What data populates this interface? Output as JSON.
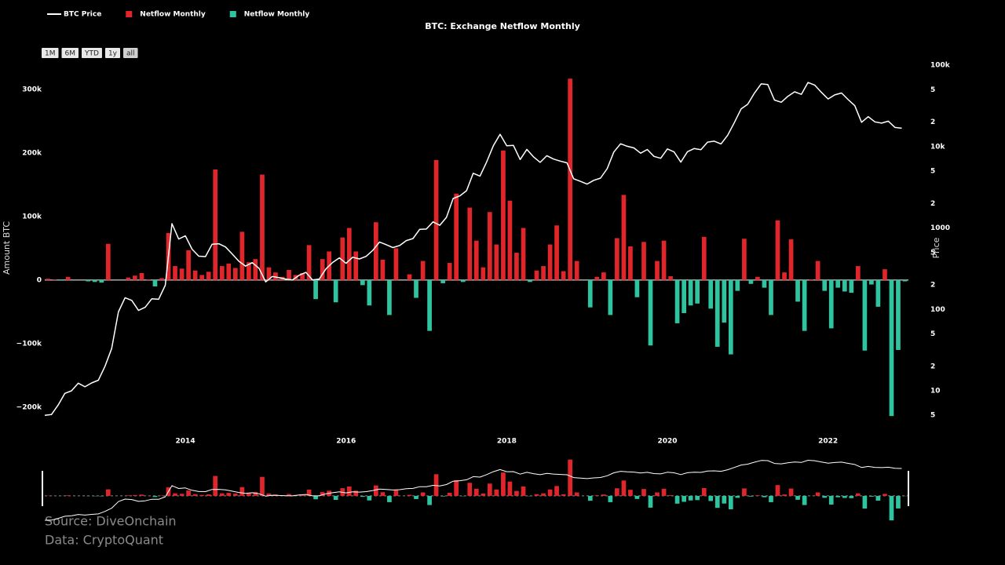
{
  "chart_data": {
    "type": "combo",
    "title": "BTC: Exchange Netflow Monthly",
    "ylabel": "Amount BTC",
    "y2label": "Price",
    "x": [
      2012.25,
      2012.333,
      2012.417,
      2012.5,
      2012.583,
      2012.667,
      2012.75,
      2012.833,
      2012.917,
      2013,
      2013.083,
      2013.167,
      2013.25,
      2013.333,
      2013.417,
      2013.5,
      2013.583,
      2013.667,
      2013.75,
      2013.833,
      2013.917,
      2014,
      2014.083,
      2014.167,
      2014.25,
      2014.333,
      2014.417,
      2014.5,
      2014.583,
      2014.667,
      2014.75,
      2014.833,
      2014.917,
      2015,
      2015.083,
      2015.167,
      2015.25,
      2015.333,
      2015.417,
      2015.5,
      2015.583,
      2015.667,
      2015.75,
      2015.833,
      2015.917,
      2016,
      2016.083,
      2016.167,
      2016.25,
      2016.333,
      2016.417,
      2016.5,
      2016.583,
      2016.667,
      2016.75,
      2016.833,
      2016.917,
      2017,
      2017.083,
      2017.167,
      2017.25,
      2017.333,
      2017.417,
      2017.5,
      2017.583,
      2017.667,
      2017.75,
      2017.833,
      2017.917,
      2018,
      2018.083,
      2018.167,
      2018.25,
      2018.333,
      2018.417,
      2018.5,
      2018.583,
      2018.667,
      2018.75,
      2018.833,
      2018.917,
      2019,
      2019.083,
      2019.167,
      2019.25,
      2019.333,
      2019.417,
      2019.5,
      2019.583,
      2019.667,
      2019.75,
      2019.833,
      2019.917,
      2020,
      2020.083,
      2020.167,
      2020.25,
      2020.333,
      2020.417,
      2020.5,
      2020.583,
      2020.667,
      2020.75,
      2020.833,
      2020.917,
      2021,
      2021.083,
      2021.167,
      2021.25,
      2021.333,
      2021.417,
      2021.5,
      2021.583,
      2021.667,
      2021.75,
      2021.833,
      2021.917,
      2022,
      2022.083,
      2022.167,
      2022.25,
      2022.333,
      2022.417,
      2022.5,
      2022.583,
      2022.667,
      2022.75,
      2022.833,
      2022.917
    ],
    "series": [
      {
        "name": "BTC Price",
        "type": "line",
        "axis": "y2",
        "color": "#ffffff",
        "values": [
          5,
          5.1,
          6.7,
          9.3,
          10,
          12.4,
          11.2,
          12.5,
          13.5,
          20,
          33,
          93,
          139,
          129,
          97,
          106,
          135,
          133,
          198,
          1130,
          732,
          800,
          550,
          450,
          445,
          630,
          640,
          585,
          480,
          390,
          340,
          375,
          320,
          218,
          254,
          245,
          236,
          230,
          263,
          285,
          230,
          236,
          314,
          377,
          430,
          368,
          437,
          416,
          448,
          531,
          673,
          624,
          575,
          609,
          700,
          742,
          963,
          970,
          1190,
          1080,
          1350,
          2300,
          2480,
          2875,
          4700,
          4340,
          6470,
          10230,
          14160,
          10220,
          10330,
          6930,
          9240,
          7490,
          6400,
          7730,
          7030,
          6630,
          6320,
          4020,
          3740,
          3460,
          3850,
          4100,
          5350,
          8570,
          10820,
          10080,
          9630,
          8290,
          9200,
          7570,
          7190,
          9350,
          8600,
          6440,
          8660,
          9460,
          9140,
          11350,
          11660,
          10780,
          13800,
          19700,
          28990,
          33100,
          45200,
          58900,
          57700,
          37300,
          35000,
          41500,
          47100,
          43800,
          61300,
          57000,
          46300,
          38500,
          43200,
          45500,
          37700,
          31800,
          19900,
          23300,
          20100,
          19400,
          20500,
          17200,
          16800
        ]
      },
      {
        "name": "Netflow Monthly",
        "type": "bar",
        "color": "#e0262b",
        "values": [
          2000,
          1000,
          null,
          5000,
          0,
          0,
          null,
          null,
          null,
          57000,
          0,
          0,
          4000,
          7000,
          11000,
          1000,
          null,
          3000,
          74000,
          22000,
          18000,
          47000,
          15000,
          8000,
          13000,
          174000,
          22000,
          26000,
          19000,
          76000,
          28000,
          33000,
          166000,
          20000,
          12000,
          5000,
          16000,
          8000,
          11000,
          55000,
          null,
          33000,
          45000,
          null,
          67000,
          82000,
          45000,
          null,
          null,
          91000,
          32000,
          null,
          50000,
          0,
          9000,
          null,
          30000,
          null,
          189000,
          null,
          27000,
          136000,
          null,
          114000,
          62000,
          20000,
          107000,
          56000,
          204000,
          125000,
          43000,
          82000,
          null,
          15000,
          22000,
          56000,
          86000,
          14000,
          317000,
          30000,
          0,
          null,
          5000,
          12000,
          null,
          66000,
          134000,
          53000,
          null,
          60000,
          null,
          30000,
          62000,
          6000,
          null,
          null,
          null,
          null,
          68000,
          null,
          null,
          null,
          null,
          null,
          65000,
          null,
          5000,
          null,
          null,
          94000,
          12000,
          64000,
          null,
          null,
          1000,
          30000,
          null,
          null,
          null,
          null,
          null,
          22000,
          null,
          null,
          null,
          17000,
          null,
          null,
          null
        ]
      },
      {
        "name": "Netflow Monthly",
        "type": "bar",
        "color": "#2ec4a0",
        "values": [
          null,
          null,
          -1000,
          null,
          null,
          null,
          -2000,
          -3000,
          -4000,
          null,
          null,
          null,
          null,
          null,
          null,
          null,
          -10000,
          null,
          null,
          null,
          null,
          null,
          null,
          null,
          null,
          null,
          null,
          null,
          null,
          null,
          null,
          null,
          null,
          null,
          null,
          null,
          null,
          null,
          null,
          null,
          -30000,
          null,
          null,
          -35000,
          null,
          null,
          null,
          -8000,
          -40000,
          null,
          null,
          -55000,
          null,
          null,
          null,
          -28000,
          null,
          -80000,
          null,
          -5000,
          null,
          null,
          -3000,
          null,
          null,
          null,
          null,
          null,
          null,
          null,
          null,
          null,
          -3000,
          null,
          null,
          null,
          null,
          null,
          null,
          null,
          null,
          -43000,
          null,
          null,
          -55000,
          null,
          null,
          null,
          -27000,
          null,
          -103000,
          null,
          null,
          null,
          -68000,
          -52000,
          -40000,
          -37000,
          null,
          -45000,
          -105000,
          -67000,
          -117000,
          -17000,
          null,
          -6000,
          null,
          -12000,
          -55000,
          null,
          null,
          null,
          -34000,
          -80000,
          null,
          null,
          -17000,
          -76000,
          -12000,
          -18000,
          -20000,
          null,
          -111000,
          -7000,
          -42000,
          null,
          -214000,
          -110000,
          -2000
        ]
      }
    ],
    "xlim": [
      2012.25,
      2023.0
    ],
    "xticks": [
      2014,
      2016,
      2018,
      2020,
      2022
    ],
    "ylim": [
      -220000,
      342000
    ],
    "yticks": [
      {
        "value": -200000,
        "label": "−200k"
      },
      {
        "value": -100000,
        "label": "−100k"
      },
      0,
      {
        "value": 100000,
        "label": "100k"
      },
      {
        "value": 200000,
        "label": "200k"
      },
      {
        "value": 300000,
        "label": "300k"
      }
    ],
    "y2lim": [
      4.4,
      107000
    ],
    "y2scale": "log",
    "y2ticks": [
      5,
      10,
      {
        "value": 20,
        "label": "2"
      },
      {
        "value": 50,
        "label": "5"
      },
      100,
      {
        "value": 200,
        "label": "2"
      },
      {
        "value": 500,
        "label": "5"
      },
      1000,
      {
        "value": 2000,
        "label": "2"
      },
      {
        "value": 5000,
        "label": "5"
      },
      {
        "value": 10000,
        "label": "10k"
      },
      {
        "value": 20000,
        "label": "2"
      },
      {
        "value": 50000,
        "label": "5"
      },
      {
        "value": 100000,
        "label": "100k"
      }
    ],
    "zeroline": true,
    "grid": false,
    "legend": "top-left"
  },
  "range_selector": [
    "1M",
    "6M",
    "YTD",
    "1y",
    "all"
  ],
  "footnotes": [
    "Source: DiveOnchain",
    "Data: CryptoQuant"
  ]
}
